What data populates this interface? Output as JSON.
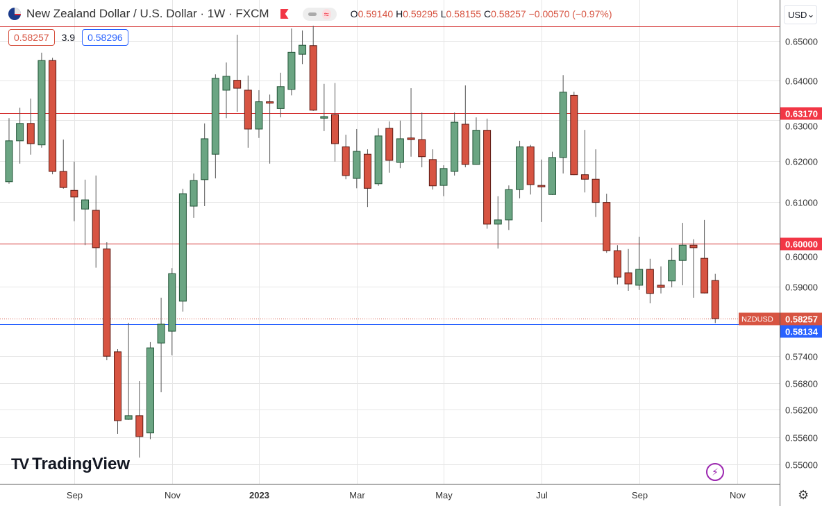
{
  "header": {
    "title": "New Zealand Dollar / U.S. Dollar · 1W · FXCM",
    "pill_a": "",
    "pill_b": "≈",
    "o_label": "O",
    "o": "0.59140",
    "h_label": "H",
    "h": "0.59295",
    "l_label": "L",
    "l": "0.58155",
    "c_label": "C",
    "c": "0.58257",
    "change": "−0.00570 (−0.97%)",
    "sell": "0.58257",
    "spread": "3.9",
    "buy": "0.58296",
    "currency": "USD"
  },
  "logo": {
    "text": "TradingView",
    "mark": "17"
  },
  "colors": {
    "up": "#6BA583",
    "down": "#D75442",
    "up_border": "#225437",
    "down_border": "#5B1A13",
    "resistance": "#D32F2F",
    "support_line": "#2962FF",
    "grid": "#E6E6E6"
  },
  "chart_data": {
    "type": "candlestick",
    "symbol": "NZDUSD",
    "interval": "1W",
    "y_scale": "log",
    "ylim": [
      0.5445,
      0.6575
    ],
    "grid": true,
    "y_ticks": [
      "0.65000",
      "0.64000",
      "0.63000",
      "0.62000",
      "0.61000",
      "0.60000",
      "0.59000",
      "0.57400",
      "0.56800",
      "0.56200",
      "0.55600",
      "0.55000"
    ],
    "x_ticks": [
      {
        "label": "Sep",
        "bar": 7
      },
      {
        "label": "Nov",
        "bar": 16
      },
      {
        "label": "2023",
        "bar": 24
      },
      {
        "label": "Mar",
        "bar": 33
      },
      {
        "label": "May",
        "bar": 41
      },
      {
        "label": "Jul",
        "bar": 50
      },
      {
        "label": "Sep",
        "bar": 59
      },
      {
        "label": "Nov",
        "bar": 68
      }
    ],
    "candles_ohlc": [
      [
        0.6149,
        0.6305,
        0.6144,
        0.6249
      ],
      [
        0.6249,
        0.6331,
        0.6193,
        0.6292
      ],
      [
        0.6292,
        0.6354,
        0.6215,
        0.6242
      ],
      [
        0.6239,
        0.647,
        0.6232,
        0.645
      ],
      [
        0.645,
        0.6457,
        0.6167,
        0.6174
      ],
      [
        0.6174,
        0.6252,
        0.6132,
        0.6135
      ],
      [
        0.6128,
        0.6198,
        0.6054,
        0.6112
      ],
      [
        0.6083,
        0.6154,
        0.5997,
        0.6105
      ],
      [
        0.608,
        0.6164,
        0.5944,
        0.5991
      ],
      [
        0.5988,
        0.6004,
        0.5731,
        0.574
      ],
      [
        0.575,
        0.5756,
        0.5567,
        0.5596
      ],
      [
        0.5599,
        0.5816,
        0.5598,
        0.5607
      ],
      [
        0.5607,
        0.5684,
        0.5515,
        0.5561
      ],
      [
        0.5569,
        0.5772,
        0.5555,
        0.5759
      ],
      [
        0.577,
        0.5874,
        0.5659,
        0.5813
      ],
      [
        0.5797,
        0.5943,
        0.5742,
        0.593
      ],
      [
        0.5866,
        0.6132,
        0.5842,
        0.612
      ],
      [
        0.609,
        0.6169,
        0.6062,
        0.6152
      ],
      [
        0.6154,
        0.6292,
        0.609,
        0.6254
      ],
      [
        0.6216,
        0.6415,
        0.6157,
        0.6405
      ],
      [
        0.6375,
        0.6445,
        0.6305,
        0.641
      ],
      [
        0.64,
        0.6516,
        0.6321,
        0.638
      ],
      [
        0.6375,
        0.6412,
        0.6232,
        0.6278
      ],
      [
        0.6278,
        0.6375,
        0.6256,
        0.6346
      ],
      [
        0.6346,
        0.6364,
        0.6193,
        0.6343
      ],
      [
        0.6329,
        0.6419,
        0.6307,
        0.6384
      ],
      [
        0.6377,
        0.6532,
        0.6362,
        0.6471
      ],
      [
        0.6466,
        0.6527,
        0.6441,
        0.6489
      ],
      [
        0.6488,
        0.6539,
        0.6323,
        0.6325
      ],
      [
        0.6305,
        0.6391,
        0.6273,
        0.6309
      ],
      [
        0.6314,
        0.6393,
        0.6198,
        0.6242
      ],
      [
        0.6234,
        0.6264,
        0.6155,
        0.6164
      ],
      [
        0.6157,
        0.6278,
        0.6133,
        0.6223
      ],
      [
        0.6216,
        0.6228,
        0.6088,
        0.6133
      ],
      [
        0.6144,
        0.628,
        0.6139,
        0.6261
      ],
      [
        0.628,
        0.6297,
        0.6171,
        0.6201
      ],
      [
        0.6196,
        0.6299,
        0.6182,
        0.6254
      ],
      [
        0.6256,
        0.638,
        0.621,
        0.6252
      ],
      [
        0.6252,
        0.6319,
        0.6184,
        0.621
      ],
      [
        0.6203,
        0.6228,
        0.613,
        0.6139
      ],
      [
        0.614,
        0.6189,
        0.6114,
        0.6181
      ],
      [
        0.6174,
        0.6319,
        0.6164,
        0.6295
      ],
      [
        0.629,
        0.6387,
        0.6184,
        0.6191
      ],
      [
        0.6191,
        0.6307,
        0.619,
        0.6275
      ],
      [
        0.6275,
        0.6304,
        0.6036,
        0.6047
      ],
      [
        0.6047,
        0.6114,
        0.5989,
        0.6057
      ],
      [
        0.6057,
        0.614,
        0.6033,
        0.613
      ],
      [
        0.613,
        0.6249,
        0.6109,
        0.6234
      ],
      [
        0.6234,
        0.6239,
        0.6118,
        0.6142
      ],
      [
        0.614,
        0.6203,
        0.6052,
        0.6137
      ],
      [
        0.6118,
        0.6222,
        0.6117,
        0.6208
      ],
      [
        0.6208,
        0.6413,
        0.6169,
        0.637
      ],
      [
        0.6362,
        0.6371,
        0.6165,
        0.6166
      ],
      [
        0.6166,
        0.6276,
        0.6123,
        0.6155
      ],
      [
        0.6155,
        0.6228,
        0.6064,
        0.6099
      ],
      [
        0.6099,
        0.612,
        0.5979,
        0.5984
      ],
      [
        0.5984,
        0.5997,
        0.5905,
        0.5922
      ],
      [
        0.5932,
        0.5988,
        0.589,
        0.5906
      ],
      [
        0.5903,
        0.6017,
        0.5892,
        0.594
      ],
      [
        0.594,
        0.5965,
        0.5861,
        0.5884
      ],
      [
        0.5903,
        0.5947,
        0.5884,
        0.5898
      ],
      [
        0.5913,
        0.5991,
        0.5898,
        0.5961
      ],
      [
        0.5961,
        0.605,
        0.5903,
        0.5997
      ],
      [
        0.5997,
        0.6011,
        0.5874,
        0.5991
      ],
      [
        0.5966,
        0.6057,
        0.5884,
        0.5885
      ],
      [
        0.5914,
        0.59295,
        0.58155,
        0.58257
      ]
    ],
    "horizontal_lines": [
      {
        "price": 0.6537,
        "label": "",
        "color": "#D32F2F"
      },
      {
        "price": 0.6317,
        "label": "0.63170",
        "color": "#D32F2F"
      },
      {
        "price": 0.6,
        "label": "0.60000",
        "color": "#D32F2F"
      },
      {
        "price": 0.58134,
        "label": "0.58134",
        "color": "#2962FF"
      }
    ],
    "last_price": {
      "price": 0.58257,
      "label": "0.58257",
      "symbol_label": "NZDUSD"
    }
  }
}
